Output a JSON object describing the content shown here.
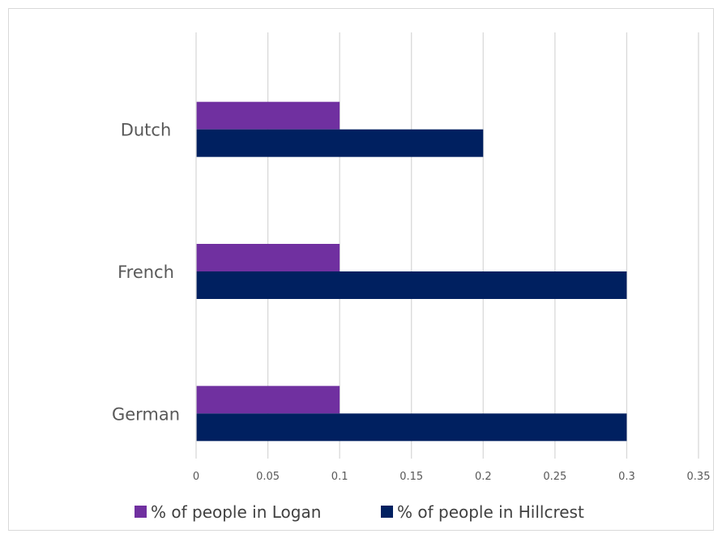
{
  "chart_data": {
    "type": "bar",
    "orientation": "horizontal",
    "categories": [
      "Dutch",
      "French",
      "German"
    ],
    "series": [
      {
        "name": "% of people in Logan",
        "values": [
          0.1,
          0.1,
          0.1
        ],
        "color": "#7030a0"
      },
      {
        "name": "% of people in Hillcrest",
        "values": [
          0.2,
          0.3,
          0.3
        ],
        "color": "#002060"
      }
    ],
    "title": "",
    "xlabel": "",
    "ylabel": "",
    "xlim": [
      0,
      0.35
    ],
    "xticks": [
      "0",
      "0.05",
      "0.1",
      "0.15",
      "0.2",
      "0.25",
      "0.3",
      "0.35"
    ],
    "grid": "vertical",
    "legend_position": "bottom"
  }
}
